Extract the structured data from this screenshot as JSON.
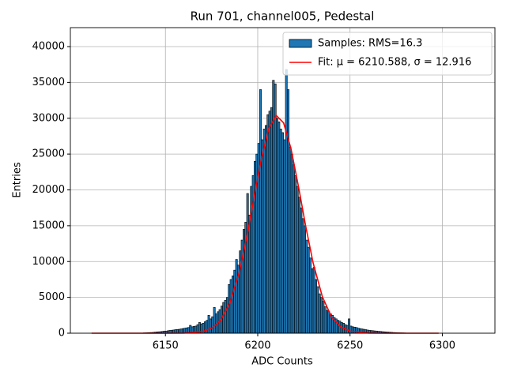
{
  "chart_data": {
    "type": "histogram",
    "title": "Run 701, channel005, Pedestal",
    "x_label": "ADC Counts",
    "y_label": "Entries",
    "xlim": [
      6098.5,
      6328.5
    ],
    "ylim": [
      0,
      42645
    ],
    "xticks": [
      6150,
      6200,
      6250,
      6300
    ],
    "yticks": [
      0,
      5000,
      10000,
      15000,
      20000,
      25000,
      30000,
      35000,
      40000
    ],
    "grid": true,
    "legend": "upper right",
    "series": [
      {
        "name": "Samples: RMS=16.3",
        "type": "histogram",
        "color": "#1f77b4",
        "edge_color": "#000000",
        "bins": [
          6138,
          6139,
          6140,
          6141,
          6142,
          6143,
          6144,
          6145,
          6146,
          6147,
          6148,
          6149,
          6150,
          6151,
          6152,
          6153,
          6154,
          6155,
          6156,
          6157,
          6158,
          6159,
          6160,
          6161,
          6162,
          6163,
          6164,
          6165,
          6166,
          6167,
          6168,
          6169,
          6170,
          6171,
          6172,
          6173,
          6174,
          6175,
          6176,
          6177,
          6178,
          6179,
          6180,
          6181,
          6182,
          6183,
          6184,
          6185,
          6186,
          6187,
          6188,
          6189,
          6190,
          6191,
          6192,
          6193,
          6194,
          6195,
          6196,
          6197,
          6198,
          6199,
          6200,
          6201,
          6202,
          6203,
          6204,
          6205,
          6206,
          6207,
          6208,
          6209,
          6210,
          6211,
          6212,
          6213,
          6214,
          6215,
          6216,
          6217,
          6218,
          6219,
          6220,
          6221,
          6222,
          6223,
          6224,
          6225,
          6226,
          6227,
          6228,
          6229,
          6230,
          6231,
          6232,
          6233,
          6234,
          6235,
          6236,
          6237,
          6238,
          6239,
          6240,
          6241,
          6242,
          6243,
          6244,
          6245,
          6246,
          6247,
          6248,
          6249,
          6250,
          6251,
          6252,
          6253,
          6254,
          6255,
          6256,
          6257,
          6258,
          6259,
          6260,
          6261,
          6262,
          6263,
          6264,
          6265,
          6266,
          6267,
          6268,
          6269,
          6270,
          6271,
          6272,
          6273,
          6274,
          6275,
          6276,
          6277,
          6278,
          6279,
          6280
        ],
        "values": [
          50,
          60,
          80,
          90,
          100,
          120,
          150,
          180,
          200,
          220,
          250,
          300,
          300,
          350,
          400,
          420,
          450,
          500,
          520,
          550,
          600,
          650,
          700,
          750,
          800,
          1100,
          900,
          950,
          1000,
          1200,
          1500,
          1300,
          1400,
          1600,
          1800,
          2500,
          2000,
          2300,
          3600,
          2700,
          3000,
          3300,
          3800,
          4300,
          4600,
          5000,
          6800,
          7500,
          8000,
          8800,
          10300,
          9500,
          11500,
          13000,
          14500,
          15500,
          19500,
          16500,
          20500,
          22000,
          24000,
          25000,
          26500,
          34000,
          27000,
          28500,
          29000,
          30500,
          31000,
          31500,
          35300,
          34800,
          30000,
          29500,
          28500,
          28000,
          27000,
          36800,
          34000,
          26000,
          25000,
          23500,
          22000,
          20500,
          19000,
          17500,
          16000,
          15000,
          13000,
          12000,
          10500,
          9000,
          9200,
          7500,
          6500,
          5500,
          5000,
          4500,
          3700,
          3200,
          3000,
          2700,
          2500,
          2200,
          2000,
          1800,
          1700,
          1500,
          1400,
          1200,
          1100,
          2000,
          1000,
          900,
          850,
          800,
          700,
          650,
          600,
          550,
          500,
          450,
          400,
          380,
          350,
          320,
          300,
          270,
          250,
          220,
          200,
          180,
          160,
          140,
          120,
          100,
          90,
          80,
          70,
          60,
          50,
          40
        ]
      },
      {
        "name": "Fit: μ = 6210.588, σ = 12.916",
        "type": "line",
        "color": "#ff0000",
        "x": [
          6110,
          6130,
          6150,
          6160,
          6170,
          6175,
          6180,
          6185,
          6190,
          6194,
          6198,
          6202,
          6206,
          6210,
          6214,
          6218,
          6222,
          6226,
          6230,
          6235,
          6240,
          6245,
          6250,
          6260,
          6270,
          6280,
          6298
        ],
        "values": [
          0,
          0,
          0,
          14,
          217,
          680,
          1830,
          4270,
          8530,
          13300,
          18900,
          24370,
          28540,
          30390,
          29360,
          25780,
          20580,
          14920,
          9820,
          5100,
          2270,
          875,
          288,
          20,
          1,
          0,
          0
        ]
      }
    ]
  }
}
